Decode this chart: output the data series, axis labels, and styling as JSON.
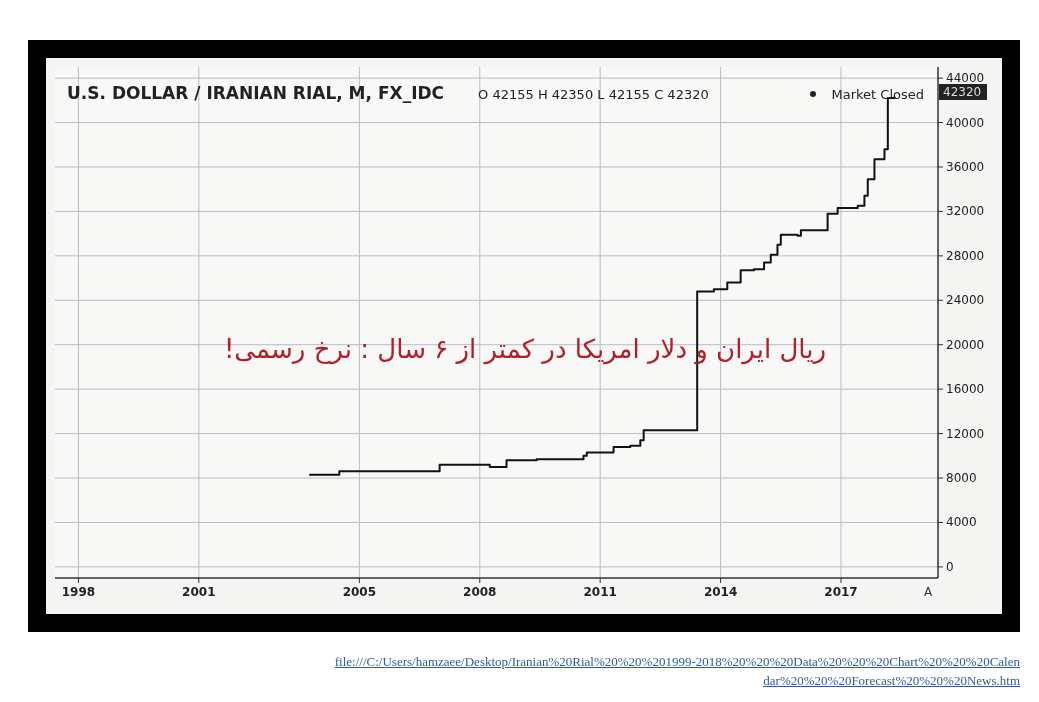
{
  "chart_data": {
    "type": "step",
    "title": "U.S. DOLLAR / IRANIAN RIAL, M, FX_IDC",
    "subtitle": "O 42155 H 42350 L 42155 C 42320",
    "x": [
      "2003-10",
      "2004-07",
      "2007-01",
      "2008-01",
      "2008-04",
      "2008-09",
      "2009-06",
      "2010-08",
      "2010-09",
      "2011-05",
      "2011-10",
      "2012-01",
      "2012-02",
      "2013-06",
      "2013-11",
      "2014-03",
      "2014-07",
      "2014-11",
      "2015-02",
      "2015-04",
      "2015-06",
      "2015-07",
      "2015-12",
      "2016-01",
      "2016-09",
      "2016-12",
      "2017-06",
      "2017-08",
      "2017-09",
      "2017-11",
      "2018-02",
      "2018-03",
      "2018-05"
    ],
    "values": [
      8300,
      8600,
      9200,
      9200,
      9000,
      9600,
      9700,
      10000,
      10300,
      10800,
      10900,
      11400,
      12300,
      24800,
      25000,
      25600,
      26700,
      26800,
      27400,
      28100,
      29000,
      29900,
      29800,
      30300,
      31800,
      32300,
      32500,
      33400,
      34900,
      36700,
      37600,
      42200,
      42320
    ],
    "color": "#111111",
    "xlim": [
      "1997-06",
      "2019-06"
    ],
    "xticks": [
      "1998",
      "2001",
      "2005",
      "2008",
      "2011",
      "2014",
      "2017"
    ],
    "ylim": [
      -1000,
      45000
    ],
    "yticks": [
      0,
      4000,
      8000,
      12000,
      16000,
      20000,
      24000,
      28000,
      32000,
      36000,
      40000,
      44000
    ],
    "grid": true,
    "annotations": [
      "Market Closed",
      "42320",
      "ریال ایران و دلار امریکا در کمتر از ۶ سال : نرخ رسمی!",
      "A",
      "file:///C:/Users/hamzaee/Desktop/Iranian%20Rial%20%20%201999-2018%20%20%20Data%20%20%20Chart%20%20%20Calendar%20%20%20Forecast%20%20%20News.htm"
    ]
  }
}
